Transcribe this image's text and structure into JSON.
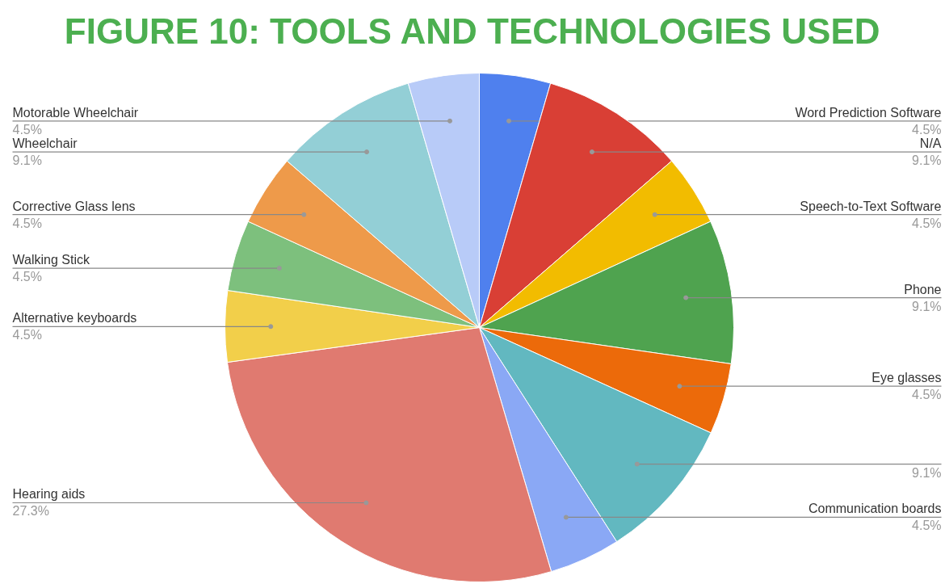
{
  "chart_data": {
    "type": "pie",
    "title": "FIGURE 10: TOOLS AND TECHNOLOGIES USED",
    "categories": [
      "Word Prediction Software",
      "N/A",
      "Speech-to-Text Software",
      "Phone",
      "Eye glasses",
      null,
      "Communication boards",
      "Hearing aids",
      "Alternative keyboards",
      "Walking Stick",
      "Corrective Glass lens",
      "Wheelchair",
      "Motorable Wheelchair"
    ],
    "values": [
      4.5,
      9.1,
      4.5,
      9.1,
      4.5,
      9.1,
      4.5,
      27.3,
      4.5,
      4.5,
      4.5,
      9.1,
      4.5
    ],
    "value_labels": [
      "4.5%",
      "9.1%",
      "4.5%",
      "9.1%",
      "4.5%",
      "9.1%",
      "4.5%",
      "27.3%",
      "4.5%",
      "4.5%",
      "4.5%",
      "9.1%",
      "4.5%"
    ],
    "colors": [
      "#4f80ee",
      "#d93f35",
      "#f2bc00",
      "#4fa34f",
      "#ec6a0a",
      "#62b8c0",
      "#8aa8f5",
      "#e07a70",
      "#f2cf4a",
      "#7dc07d",
      "#ee9a4a",
      "#93cfd6",
      "#b8cbf8"
    ]
  }
}
